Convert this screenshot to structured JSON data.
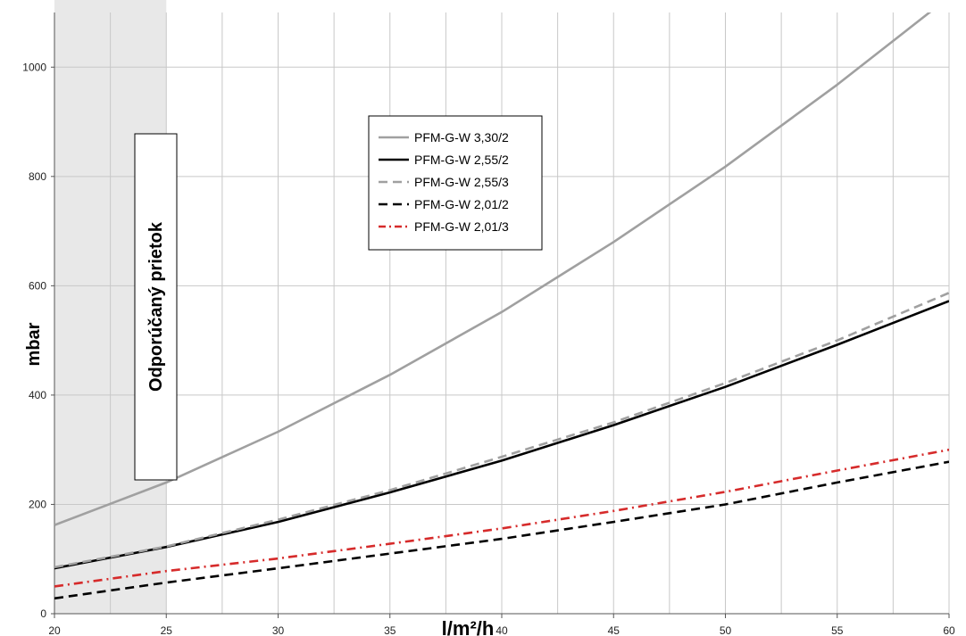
{
  "chart_data": {
    "type": "line",
    "xlabel": "l/m²/h",
    "ylabel": "mbar",
    "xlim": [
      20,
      60
    ],
    "ylim": [
      0,
      1100
    ],
    "x_ticks": [
      20,
      25,
      30,
      35,
      40,
      45,
      50,
      55,
      60
    ],
    "y_ticks": [
      0,
      200,
      400,
      600,
      800,
      1000
    ],
    "grid": true,
    "legend_position": "top-center",
    "highlight_band": {
      "x_range": [
        20,
        25
      ],
      "label": "Odporúčaný prietok",
      "color": "#e8e8e8"
    },
    "x": [
      20,
      25,
      30,
      35,
      40,
      45,
      50,
      55,
      60
    ],
    "series": [
      {
        "name": "PFM-G-W 3,30/2",
        "color": "#a0a0a0",
        "style": "solid",
        "values": [
          162,
          240,
          333,
          437,
          552,
          680,
          818,
          968,
          1128
        ]
      },
      {
        "name": "PFM-G-W 2,55/2",
        "color": "#000000",
        "style": "solid",
        "values": [
          83,
          122,
          168,
          222,
          280,
          345,
          415,
          492,
          572
        ]
      },
      {
        "name": "PFM-G-W 2,55/3",
        "color": "#a0a0a0",
        "style": "dashed",
        "values": [
          85,
          123,
          172,
          226,
          287,
          350,
          422,
          500,
          587
        ]
      },
      {
        "name": "PFM-G-W 2,01/2",
        "color": "#000000",
        "style": "dashed",
        "values": [
          28,
          57,
          83,
          110,
          137,
          168,
          200,
          240,
          278
        ]
      },
      {
        "name": "PFM-G-W 2,01/3",
        "color": "#d62b2b",
        "style": "dashdot",
        "values": [
          50,
          78,
          101,
          128,
          156,
          188,
          223,
          262,
          300
        ]
      }
    ]
  }
}
